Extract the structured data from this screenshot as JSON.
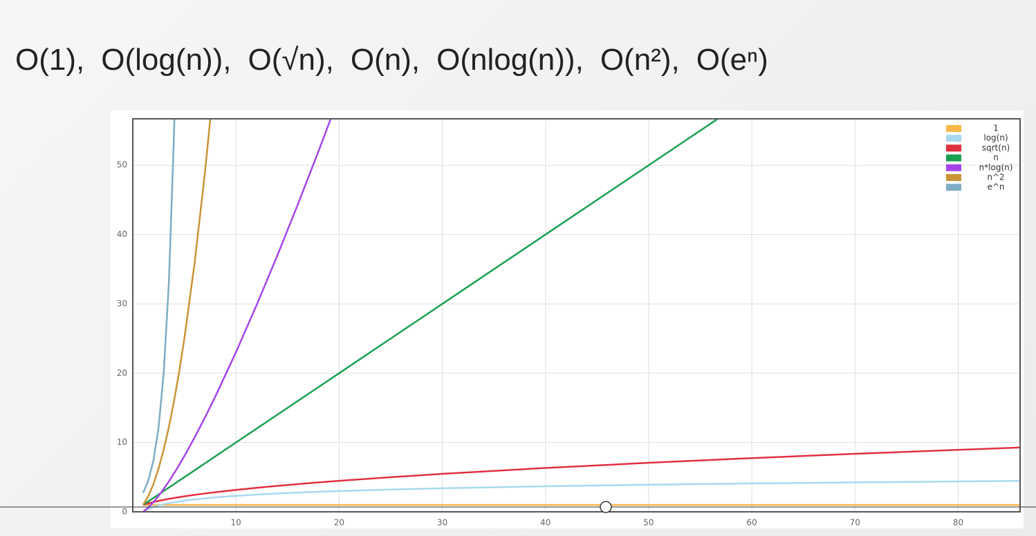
{
  "title_terms": [
    "O(1),",
    "O(log(n)),",
    "O(√n),",
    "O(n),",
    "O(nlog(n)),",
    "O(n²),",
    "O(eⁿ)"
  ],
  "chart_data": {
    "type": "line",
    "x": [
      1,
      1.5,
      2,
      2.5,
      3,
      3.5,
      4,
      4.5,
      5,
      6,
      7,
      8,
      10,
      12,
      14,
      16,
      18,
      20,
      25,
      30,
      40,
      50,
      57,
      60,
      70,
      80,
      86
    ],
    "series": [
      {
        "name": "1",
        "color": "#f9b84a",
        "values": [
          1,
          1,
          1,
          1,
          1,
          1,
          1,
          1,
          1,
          1,
          1,
          1,
          1,
          1,
          1,
          1,
          1,
          1,
          1,
          1,
          1,
          1,
          1,
          1,
          1,
          1,
          1
        ]
      },
      {
        "name": "log(n)",
        "color": "#a8d8f0",
        "values": [
          0,
          0.405,
          0.693,
          0.916,
          1.099,
          1.253,
          1.386,
          1.504,
          1.609,
          1.792,
          1.946,
          2.079,
          2.303,
          2.485,
          2.639,
          2.773,
          2.89,
          2.996,
          3.219,
          3.401,
          3.689,
          3.912,
          4.043,
          4.094,
          4.248,
          4.382,
          4.454
        ]
      },
      {
        "name": "sqrt(n)",
        "color": "#e0303f",
        "values": [
          1,
          1.225,
          1.414,
          1.581,
          1.732,
          1.871,
          2,
          2.121,
          2.236,
          2.449,
          2.646,
          2.828,
          3.162,
          3.464,
          3.742,
          4,
          4.243,
          4.472,
          5,
          5.477,
          6.325,
          7.071,
          7.55,
          7.746,
          8.367,
          8.944,
          9.274
        ]
      },
      {
        "name": "n",
        "color": "#1aa050",
        "values": [
          1,
          1.5,
          2,
          2.5,
          3,
          3.5,
          4,
          4.5,
          5,
          6,
          7,
          8,
          10,
          12,
          14,
          16,
          18,
          20,
          25,
          30,
          40,
          50,
          57,
          60,
          null,
          null,
          null
        ]
      },
      {
        "name": "n*log(n)",
        "color": "#a545e8",
        "values": [
          0,
          0.608,
          1.386,
          2.291,
          3.296,
          4.385,
          5.545,
          6.768,
          8.047,
          10.751,
          13.621,
          16.636,
          23.026,
          29.819,
          36.946,
          44.361,
          52.026,
          59.915,
          null,
          null,
          null,
          null,
          null,
          null,
          null,
          null,
          null
        ]
      },
      {
        "name": "n^2",
        "color": "#c89436",
        "values": [
          1,
          2.25,
          4,
          6.25,
          9,
          12.25,
          16,
          20.25,
          25,
          36,
          49,
          64,
          null,
          null,
          null,
          null,
          null,
          null,
          null,
          null,
          null,
          null,
          null,
          null,
          null,
          null,
          null
        ]
      },
      {
        "name": "e^n",
        "color": "#7eacc4",
        "values": [
          2.718,
          4.482,
          7.389,
          12.182,
          20.086,
          33.115,
          54.598,
          90.017,
          null,
          null,
          null,
          null,
          null,
          null,
          null,
          null,
          null,
          null,
          null,
          null,
          null,
          null,
          null,
          null,
          null,
          null,
          null
        ]
      }
    ],
    "xlim": [
      0,
      86
    ],
    "ylim": [
      0,
      56.7
    ],
    "xticks": [
      10,
      20,
      30,
      40,
      50,
      60,
      70,
      80
    ],
    "yticks": [
      0,
      10,
      20,
      30,
      40,
      50
    ],
    "grid": true,
    "legend": "top-right"
  }
}
